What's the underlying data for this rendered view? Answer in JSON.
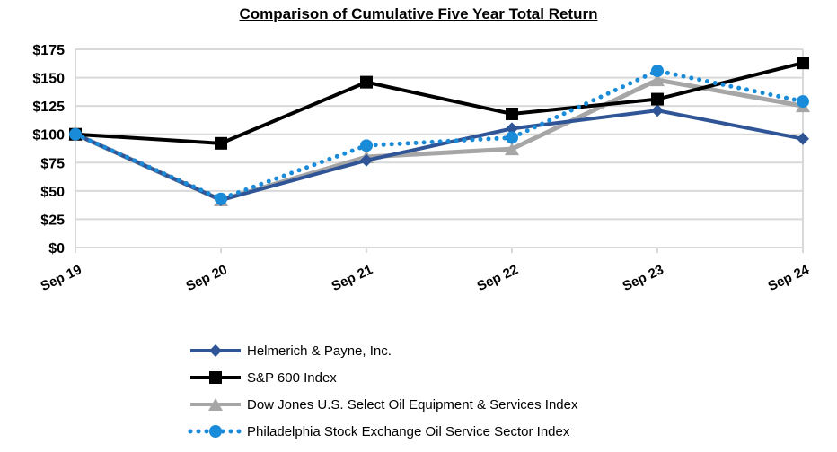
{
  "chart_data": {
    "type": "line",
    "title": "Comparison of Cumulative Five Year Total Return",
    "xlabel": "",
    "ylabel": "",
    "categories": [
      "Sep 19",
      "Sep 20",
      "Sep 21",
      "Sep 22",
      "Sep 23",
      "Sep 24"
    ],
    "ylim": [
      0,
      175
    ],
    "yticks": [
      0,
      25,
      50,
      75,
      100,
      125,
      150,
      175
    ],
    "ytick_labels": [
      "$0",
      "$25",
      "$50",
      "$75",
      "$100",
      "$125",
      "$150",
      "$175"
    ],
    "grid": true,
    "legend_position": "bottom",
    "series": [
      {
        "name": "Helmerich & Payne, Inc.",
        "values": [
          100,
          42,
          77,
          105,
          121,
          96
        ],
        "color": "#2F5597",
        "marker": "diamond",
        "style": "solid"
      },
      {
        "name": "S&P 600 Index",
        "values": [
          100,
          92,
          146,
          118,
          131,
          163
        ],
        "color": "#000000",
        "marker": "square",
        "style": "solid"
      },
      {
        "name": "Dow Jones U.S. Select Oil Equipment & Services Index",
        "values": [
          100,
          42,
          80,
          87,
          148,
          125
        ],
        "color": "#A6A6A6",
        "marker": "triangle",
        "style": "solid"
      },
      {
        "name": "Philadelphia Stock Exchange Oil Service Sector Index",
        "values": [
          100,
          43,
          90,
          97,
          156,
          129
        ],
        "color": "#1A8BD8",
        "marker": "circle",
        "style": "dotted"
      }
    ]
  }
}
